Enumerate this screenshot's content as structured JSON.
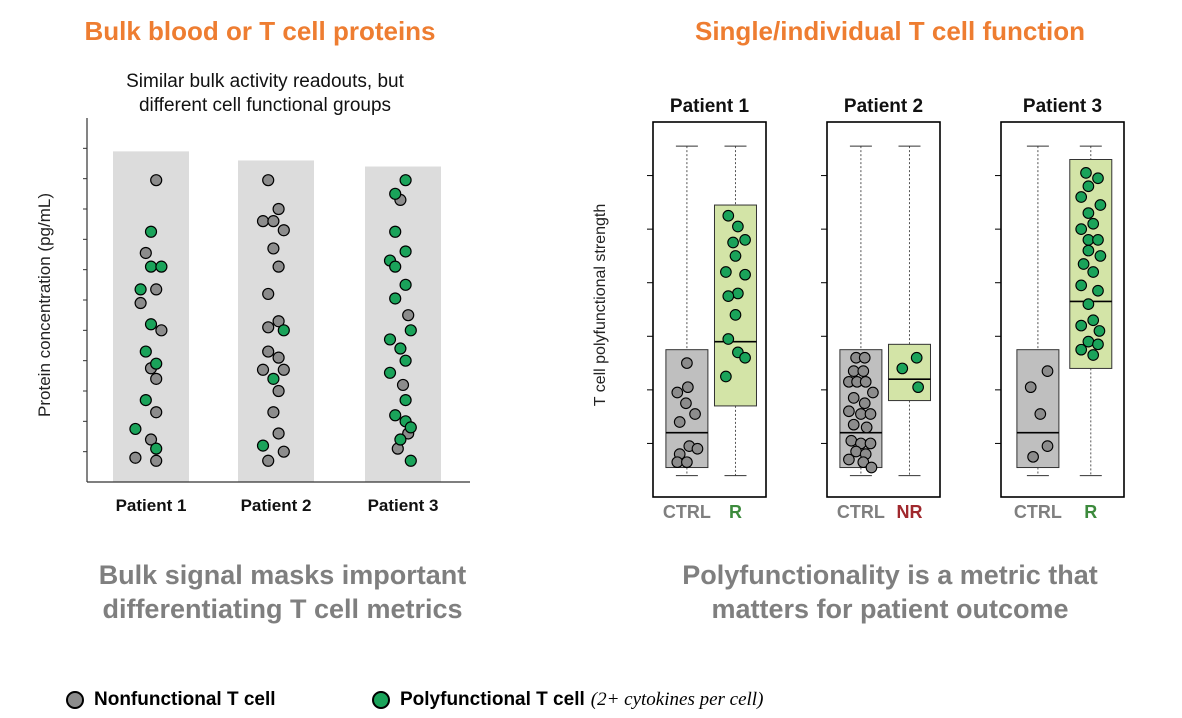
{
  "headings": {
    "left": "Bulk blood or T cell proteins",
    "right": "Single/individual T cell function"
  },
  "colors": {
    "heading": "#ee7d31",
    "nonfunctional": "#8c8c8c",
    "polyfunctional": "#1aa35a",
    "ctrl_label": "#7f7f7f",
    "r_label": "#3c8a3c",
    "nr_label": "#a0282d",
    "box_green": "#d3e4a7",
    "box_gray": "#bfbfbf",
    "column_bg": "#dcdcdc"
  },
  "takeaways": {
    "left_line1": "Bulk signal masks important",
    "left_line2": "differentiating T cell metrics",
    "right_line1": "Polyfunctionality is a metric that",
    "right_line2": "matters for patient outcome"
  },
  "legend": {
    "nonfunctional": "Nonfunctional T cell",
    "polyfunctional": "Polyfunctional T cell",
    "note": "(2+ cytokines per cell)"
  },
  "chart_data": [
    {
      "type": "scatter",
      "title": "",
      "subtitle_line1": "Similar bulk activity readouts, but",
      "subtitle_line2": "different cell functional groups",
      "xlabel": "",
      "ylabel": "Protein concentration (pg/mL)",
      "ylim": [
        0,
        12
      ],
      "categories": [
        "Patient 1",
        "Patient 2",
        "Patient 3"
      ],
      "column_heights": [
        10.9,
        10.6,
        10.4
      ],
      "series": [
        {
          "name": "Nonfunctional T cell",
          "points": [
            {
              "x": 1,
              "y": 9.95,
              "dx": 0.1
            },
            {
              "x": 1,
              "y": 7.55,
              "dx": -0.1
            },
            {
              "x": 1,
              "y": 6.35,
              "dx": 0.1
            },
            {
              "x": 1,
              "y": 5.9,
              "dx": -0.2
            },
            {
              "x": 1,
              "y": 5.0,
              "dx": 0.2
            },
            {
              "x": 1,
              "y": 3.75,
              "dx": 0.0
            },
            {
              "x": 1,
              "y": 3.4,
              "dx": 0.1
            },
            {
              "x": 1,
              "y": 2.3,
              "dx": 0.1
            },
            {
              "x": 1,
              "y": 1.4,
              "dx": 0.0
            },
            {
              "x": 1,
              "y": 0.8,
              "dx": -0.3
            },
            {
              "x": 1,
              "y": 0.7,
              "dx": 0.1
            },
            {
              "x": 2,
              "y": 9.95,
              "dx": -0.15
            },
            {
              "x": 2,
              "y": 9.0,
              "dx": 0.05
            },
            {
              "x": 2,
              "y": 8.6,
              "dx": -0.25
            },
            {
              "x": 2,
              "y": 8.6,
              "dx": -0.05
            },
            {
              "x": 2,
              "y": 8.3,
              "dx": 0.15
            },
            {
              "x": 2,
              "y": 7.7,
              "dx": -0.05
            },
            {
              "x": 2,
              "y": 7.1,
              "dx": 0.05
            },
            {
              "x": 2,
              "y": 6.2,
              "dx": -0.15
            },
            {
              "x": 2,
              "y": 5.3,
              "dx": 0.05
            },
            {
              "x": 2,
              "y": 5.1,
              "dx": -0.15
            },
            {
              "x": 2,
              "y": 4.3,
              "dx": -0.15
            },
            {
              "x": 2,
              "y": 4.1,
              "dx": 0.05
            },
            {
              "x": 2,
              "y": 3.7,
              "dx": -0.25
            },
            {
              "x": 2,
              "y": 3.7,
              "dx": 0.15
            },
            {
              "x": 2,
              "y": 3.0,
              "dx": 0.05
            },
            {
              "x": 2,
              "y": 2.3,
              "dx": -0.05
            },
            {
              "x": 2,
              "y": 1.6,
              "dx": 0.05
            },
            {
              "x": 2,
              "y": 1.0,
              "dx": 0.15
            },
            {
              "x": 2,
              "y": 0.7,
              "dx": -0.15
            },
            {
              "x": 3,
              "y": 9.3,
              "dx": -0.05
            },
            {
              "x": 3,
              "y": 5.5,
              "dx": 0.1
            },
            {
              "x": 3,
              "y": 3.2,
              "dx": 0.0
            },
            {
              "x": 3,
              "y": 1.6,
              "dx": 0.1
            },
            {
              "x": 3,
              "y": 1.1,
              "dx": -0.1
            }
          ]
        },
        {
          "name": "Polyfunctional T cell",
          "points": [
            {
              "x": 1,
              "y": 8.25,
              "dx": 0.0
            },
            {
              "x": 1,
              "y": 7.1,
              "dx": 0.0
            },
            {
              "x": 1,
              "y": 7.1,
              "dx": 0.2
            },
            {
              "x": 1,
              "y": 6.35,
              "dx": -0.2
            },
            {
              "x": 1,
              "y": 5.2,
              "dx": 0.0
            },
            {
              "x": 1,
              "y": 4.3,
              "dx": -0.1
            },
            {
              "x": 1,
              "y": 3.9,
              "dx": 0.1
            },
            {
              "x": 1,
              "y": 2.7,
              "dx": -0.1
            },
            {
              "x": 1,
              "y": 1.75,
              "dx": -0.3
            },
            {
              "x": 1,
              "y": 1.1,
              "dx": 0.1
            },
            {
              "x": 2,
              "y": 5.0,
              "dx": 0.15
            },
            {
              "x": 2,
              "y": 3.4,
              "dx": -0.05
            },
            {
              "x": 2,
              "y": 1.2,
              "dx": -0.25
            },
            {
              "x": 3,
              "y": 9.95,
              "dx": 0.05
            },
            {
              "x": 3,
              "y": 9.5,
              "dx": -0.15
            },
            {
              "x": 3,
              "y": 8.25,
              "dx": -0.15
            },
            {
              "x": 3,
              "y": 7.6,
              "dx": 0.05
            },
            {
              "x": 3,
              "y": 7.3,
              "dx": -0.25
            },
            {
              "x": 3,
              "y": 7.1,
              "dx": -0.15
            },
            {
              "x": 3,
              "y": 6.5,
              "dx": 0.05
            },
            {
              "x": 3,
              "y": 6.05,
              "dx": -0.15
            },
            {
              "x": 3,
              "y": 5.0,
              "dx": 0.15
            },
            {
              "x": 3,
              "y": 4.7,
              "dx": -0.25
            },
            {
              "x": 3,
              "y": 4.4,
              "dx": -0.05
            },
            {
              "x": 3,
              "y": 4.0,
              "dx": 0.05
            },
            {
              "x": 3,
              "y": 3.6,
              "dx": -0.25
            },
            {
              "x": 3,
              "y": 2.7,
              "dx": 0.05
            },
            {
              "x": 3,
              "y": 2.2,
              "dx": -0.15
            },
            {
              "x": 3,
              "y": 2.0,
              "dx": 0.05
            },
            {
              "x": 3,
              "y": 1.8,
              "dx": 0.15
            },
            {
              "x": 3,
              "y": 1.4,
              "dx": -0.05
            },
            {
              "x": 3,
              "y": 0.7,
              "dx": 0.15
            }
          ]
        }
      ]
    },
    {
      "type": "box",
      "title": "",
      "ylabel": "T cell polyfunctional strength",
      "ylim": [
        0,
        7
      ],
      "panels": [
        {
          "title": "Patient 1",
          "groups": [
            {
              "label": "CTRL",
              "kind": "ctrl",
              "whisker": [
                0.4,
                6.55
              ],
              "box": [
                0.55,
                2.75
              ],
              "median": 1.2,
              "points": [
                {
                  "y": 2.5,
                  "dx": 0.0
                },
                {
                  "y": 2.05,
                  "dx": 0.02
                },
                {
                  "y": 1.95,
                  "dx": -0.2
                },
                {
                  "y": 1.75,
                  "dx": -0.02
                },
                {
                  "y": 1.55,
                  "dx": 0.17
                },
                {
                  "y": 1.4,
                  "dx": -0.15
                },
                {
                  "y": 0.95,
                  "dx": 0.05
                },
                {
                  "y": 0.9,
                  "dx": 0.22
                },
                {
                  "y": 0.8,
                  "dx": -0.15
                },
                {
                  "y": 0.65,
                  "dx": -0.2
                },
                {
                  "y": 0.65,
                  "dx": 0.0
                }
              ]
            },
            {
              "label": "R",
              "kind": "r",
              "whisker": [
                0.4,
                6.55
              ],
              "box": [
                1.7,
                5.45
              ],
              "median": 2.9,
              "points": [
                {
                  "y": 5.25,
                  "dx": -0.15
                },
                {
                  "y": 5.05,
                  "dx": 0.05
                },
                {
                  "y": 4.8,
                  "dx": 0.2
                },
                {
                  "y": 4.75,
                  "dx": -0.05
                },
                {
                  "y": 4.5,
                  "dx": 0.0
                },
                {
                  "y": 4.2,
                  "dx": -0.2
                },
                {
                  "y": 4.15,
                  "dx": 0.2
                },
                {
                  "y": 3.8,
                  "dx": 0.05
                },
                {
                  "y": 3.75,
                  "dx": -0.15
                },
                {
                  "y": 3.4,
                  "dx": 0.0
                },
                {
                  "y": 2.95,
                  "dx": -0.15
                },
                {
                  "y": 2.7,
                  "dx": 0.05
                },
                {
                  "y": 2.6,
                  "dx": 0.2
                },
                {
                  "y": 2.25,
                  "dx": -0.2
                }
              ]
            }
          ]
        },
        {
          "title": "Patient 2",
          "groups": [
            {
              "label": "CTRL",
              "kind": "ctrl",
              "whisker": [
                0.4,
                6.55
              ],
              "box": [
                0.55,
                2.75
              ],
              "median": 1.2,
              "points": [
                {
                  "y": 2.6,
                  "dx": -0.1
                },
                {
                  "y": 2.6,
                  "dx": 0.08
                },
                {
                  "y": 2.35,
                  "dx": -0.15
                },
                {
                  "y": 2.35,
                  "dx": 0.05
                },
                {
                  "y": 2.15,
                  "dx": -0.25
                },
                {
                  "y": 2.15,
                  "dx": -0.08
                },
                {
                  "y": 2.15,
                  "dx": 0.1
                },
                {
                  "y": 1.95,
                  "dx": 0.25
                },
                {
                  "y": 1.85,
                  "dx": -0.15
                },
                {
                  "y": 1.75,
                  "dx": 0.08
                },
                {
                  "y": 1.6,
                  "dx": -0.25
                },
                {
                  "y": 1.55,
                  "dx": 0.0
                },
                {
                  "y": 1.55,
                  "dx": 0.2
                },
                {
                  "y": 1.35,
                  "dx": -0.15
                },
                {
                  "y": 1.3,
                  "dx": 0.12
                },
                {
                  "y": 1.05,
                  "dx": -0.2
                },
                {
                  "y": 1.0,
                  "dx": 0.0
                },
                {
                  "y": 1.0,
                  "dx": 0.2
                },
                {
                  "y": 0.85,
                  "dx": -0.1
                },
                {
                  "y": 0.8,
                  "dx": 0.1
                },
                {
                  "y": 0.7,
                  "dx": -0.25
                },
                {
                  "y": 0.65,
                  "dx": 0.05
                },
                {
                  "y": 0.55,
                  "dx": 0.22
                }
              ]
            },
            {
              "label": "NR",
              "kind": "nr",
              "whisker": [
                0.4,
                6.55
              ],
              "box": [
                1.8,
                2.85
              ],
              "median": 2.2,
              "points": [
                {
                  "y": 2.6,
                  "dx": 0.15
                },
                {
                  "y": 2.4,
                  "dx": -0.15
                },
                {
                  "y": 2.05,
                  "dx": 0.18
                }
              ]
            }
          ]
        },
        {
          "title": "Patient 3",
          "groups": [
            {
              "label": "CTRL",
              "kind": "ctrl",
              "whisker": [
                0.4,
                6.55
              ],
              "box": [
                0.55,
                2.75
              ],
              "median": 1.2,
              "points": [
                {
                  "y": 2.35,
                  "dx": 0.2
                },
                {
                  "y": 2.05,
                  "dx": -0.15
                },
                {
                  "y": 1.55,
                  "dx": 0.05
                },
                {
                  "y": 0.95,
                  "dx": 0.2
                },
                {
                  "y": 0.75,
                  "dx": -0.1
                }
              ]
            },
            {
              "label": "R",
              "kind": "r",
              "whisker": [
                0.4,
                6.55
              ],
              "box": [
                2.4,
                6.3
              ],
              "median": 3.65,
              "points": [
                {
                  "y": 6.05,
                  "dx": -0.1
                },
                {
                  "y": 5.95,
                  "dx": 0.15
                },
                {
                  "y": 5.8,
                  "dx": -0.05
                },
                {
                  "y": 5.6,
                  "dx": -0.2
                },
                {
                  "y": 5.45,
                  "dx": 0.2
                },
                {
                  "y": 5.3,
                  "dx": -0.05
                },
                {
                  "y": 5.1,
                  "dx": 0.05
                },
                {
                  "y": 5.0,
                  "dx": -0.2
                },
                {
                  "y": 4.8,
                  "dx": -0.05
                },
                {
                  "y": 4.8,
                  "dx": 0.15
                },
                {
                  "y": 4.6,
                  "dx": -0.05
                },
                {
                  "y": 4.5,
                  "dx": 0.2
                },
                {
                  "y": 4.35,
                  "dx": -0.15
                },
                {
                  "y": 4.2,
                  "dx": 0.05
                },
                {
                  "y": 3.95,
                  "dx": -0.2
                },
                {
                  "y": 3.85,
                  "dx": 0.15
                },
                {
                  "y": 3.6,
                  "dx": -0.05
                },
                {
                  "y": 3.3,
                  "dx": 0.05
                },
                {
                  "y": 3.2,
                  "dx": -0.2
                },
                {
                  "y": 3.1,
                  "dx": 0.18
                },
                {
                  "y": 2.9,
                  "dx": -0.05
                },
                {
                  "y": 2.85,
                  "dx": 0.15
                },
                {
                  "y": 2.75,
                  "dx": -0.2
                },
                {
                  "y": 2.65,
                  "dx": 0.05
                }
              ]
            }
          ]
        }
      ]
    }
  ]
}
